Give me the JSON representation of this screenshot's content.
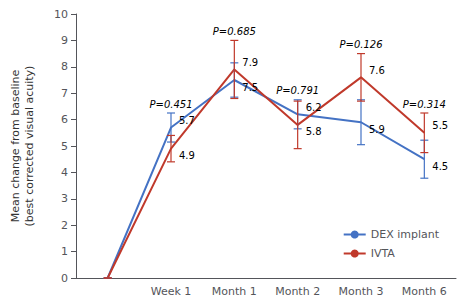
{
  "chart_data": {
    "type": "line",
    "categories": [
      null,
      "Week 1",
      "Month 1",
      "Month 2",
      "Month 3",
      "Month 6"
    ],
    "series": [
      {
        "name": "DEX implant",
        "color": "#4472C4",
        "values": [
          0,
          5.7,
          7.5,
          6.2,
          5.9,
          4.5
        ],
        "errors": [
          0,
          0.55,
          0.65,
          0.55,
          0.85,
          0.72
        ],
        "value_labels": [
          null,
          "5.7",
          "7.5",
          "6.2",
          "5.9",
          "4.5"
        ]
      },
      {
        "name": "IVTA",
        "color": "#C0392B",
        "values": [
          0,
          4.9,
          7.9,
          5.8,
          7.6,
          5.5
        ],
        "errors": [
          0,
          0.5,
          1.1,
          0.9,
          0.9,
          0.75
        ],
        "value_labels": [
          null,
          "4.9",
          "7.9",
          "5.8",
          "7.6",
          "5.5"
        ]
      }
    ],
    "data_labels": true,
    "annotations": [
      {
        "category": "Week 1",
        "text": "P=0.451"
      },
      {
        "category": "Month 1",
        "text": "P=0.685"
      },
      {
        "category": "Month 2",
        "text": "P=0.791"
      },
      {
        "category": "Month 3",
        "text": "P=0.126"
      },
      {
        "category": "Month 6",
        "text": "P=0.314"
      }
    ],
    "ylabel": "Mean change from baseline\n(best corrected visual acuity)",
    "ylim": [
      0,
      10
    ],
    "yticks": [
      0,
      1,
      2,
      3,
      4,
      5,
      6,
      7,
      8,
      9,
      10
    ],
    "grid": false,
    "legend": "lower right"
  }
}
